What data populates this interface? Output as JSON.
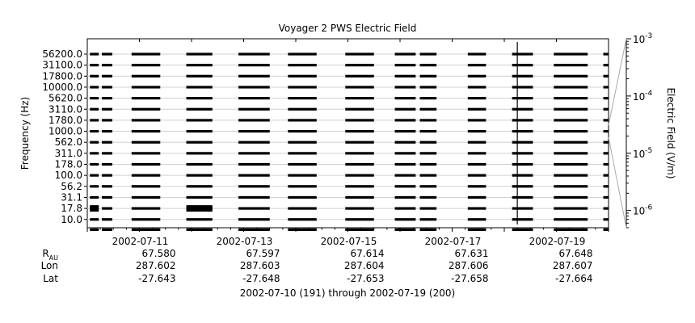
{
  "chart_data": {
    "type": "heatmap",
    "title": "Voyager 2 PWS Electric Field",
    "ylabel": "Frequency (Hz)",
    "colorbar_label": "Electric Field (V/m)",
    "colorbar_scale": "log",
    "colorbar_ticks": [
      {
        "value": 0.001,
        "base": "10",
        "exp": "-3"
      },
      {
        "value": 0.0001,
        "base": "10",
        "exp": "-4"
      },
      {
        "value": 1e-05,
        "base": "10",
        "exp": "-5"
      },
      {
        "value": 1e-06,
        "base": "10",
        "exp": "-6"
      }
    ],
    "colorbar_range": [
      5e-07,
      0.001
    ],
    "frequency_channels": [
      "56200.0",
      "31100.0",
      "17800.0",
      "10000.0",
      "5620.0",
      "3110.0",
      "1780.0",
      "1000.0",
      "562.0",
      "311.0",
      "178.0",
      "100.0",
      "56.2",
      "31.1",
      "17.8",
      "10.0"
    ],
    "x_range_days": [
      "2002-07-10",
      "2002-07-20"
    ],
    "date_ticks": [
      "2002-07-11",
      "2002-07-13",
      "2002-07-15",
      "2002-07-17",
      "2002-07-19"
    ],
    "ephemeris": {
      "labels": {
        "r": "R",
        "r_sub": "AU",
        "lon": "Lon",
        "lat": "Lat"
      },
      "r_au": [
        "67.580",
        "67.597",
        "67.614",
        "67.631",
        "67.648"
      ],
      "lon": [
        "287.602",
        "287.603",
        "287.604",
        "287.606",
        "287.607"
      ],
      "lat": [
        "-27.643",
        "-27.648",
        "-27.653",
        "-27.658",
        "-27.664"
      ]
    },
    "footer": "2002-07-10 (191) through 2002-07-19 (200)",
    "data_segments": [
      [
        0.05,
        0.22
      ],
      [
        0.28,
        0.48
      ],
      [
        0.85,
        1.4
      ],
      [
        1.9,
        2.4
      ],
      [
        2.9,
        3.5
      ],
      [
        3.85,
        4.4
      ],
      [
        4.95,
        5.5
      ],
      [
        5.9,
        6.3
      ],
      [
        6.38,
        6.7
      ],
      [
        7.3,
        7.65
      ],
      [
        8.15,
        8.55
      ],
      [
        8.95,
        9.6
      ],
      [
        9.9,
        10.0
      ]
    ],
    "spike_day": 8.25
  }
}
